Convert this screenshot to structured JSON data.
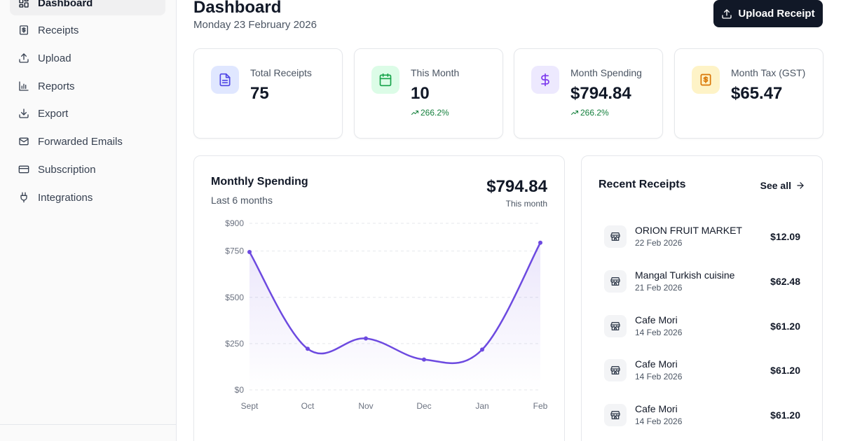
{
  "sidebar": {
    "items": [
      {
        "label": "Dashboard",
        "icon": "layout-grid-icon",
        "active": true
      },
      {
        "label": "Receipts",
        "icon": "receipt-icon"
      },
      {
        "label": "Upload",
        "icon": "upload-icon"
      },
      {
        "label": "Reports",
        "icon": "bar-chart-icon"
      },
      {
        "label": "Export",
        "icon": "download-icon"
      },
      {
        "label": "Forwarded Emails",
        "icon": "mail-icon"
      },
      {
        "label": "Subscription",
        "icon": "credit-card-icon"
      },
      {
        "label": "Integrations",
        "icon": "plug-icon"
      }
    ]
  },
  "header": {
    "title": "Dashboard",
    "date": "Monday 23 February 2026",
    "upload_label": "Upload Receipt"
  },
  "stats": [
    {
      "label": "Total Receipts",
      "value": "75",
      "change": "",
      "icon": "file-text-icon",
      "color": "#e0e7ff",
      "icon_color": "#4f46e5"
    },
    {
      "label": "This Month",
      "value": "10",
      "change": "266.2%",
      "icon": "calendar-icon",
      "color": "#dcfce7",
      "icon_color": "#16a34a"
    },
    {
      "label": "Month Spending",
      "value": "$794.84",
      "change": "266.2%",
      "icon": "dollar-icon",
      "color": "#ede9fe",
      "icon_color": "#7c3aed"
    },
    {
      "label": "Month Tax (GST)",
      "value": "$65.47",
      "change": "",
      "icon": "receipt-dollar-icon",
      "color": "#fef3c7",
      "icon_color": "#d97706"
    }
  ],
  "chart_card": {
    "title": "Monthly Spending",
    "subtitle": "Last 6 months",
    "total": "$794.84",
    "total_caption": "This month"
  },
  "chart_data": {
    "type": "area",
    "categories": [
      "Sept",
      "Oct",
      "Nov",
      "Dec",
      "Jan",
      "Feb"
    ],
    "values": [
      745,
      222,
      278,
      164,
      218,
      795
    ],
    "yticks": [
      "$0",
      "$250",
      "$500",
      "$750",
      "$900"
    ],
    "ylim": [
      0,
      900
    ],
    "grid": true,
    "line_color": "#6d4ae0"
  },
  "recent": {
    "title": "Recent Receipts",
    "see_all": "See all",
    "items": [
      {
        "name": "ORION FRUIT MARKET",
        "date": "22 Feb 2026",
        "amount": "$12.09"
      },
      {
        "name": "Mangal Turkish cuisine",
        "date": "21 Feb 2026",
        "amount": "$62.48"
      },
      {
        "name": "Cafe Mori",
        "date": "14 Feb 2026",
        "amount": "$61.20"
      },
      {
        "name": "Cafe Mori",
        "date": "14 Feb 2026",
        "amount": "$61.20"
      },
      {
        "name": "Cafe Mori",
        "date": "14 Feb 2026",
        "amount": "$61.20"
      }
    ]
  }
}
